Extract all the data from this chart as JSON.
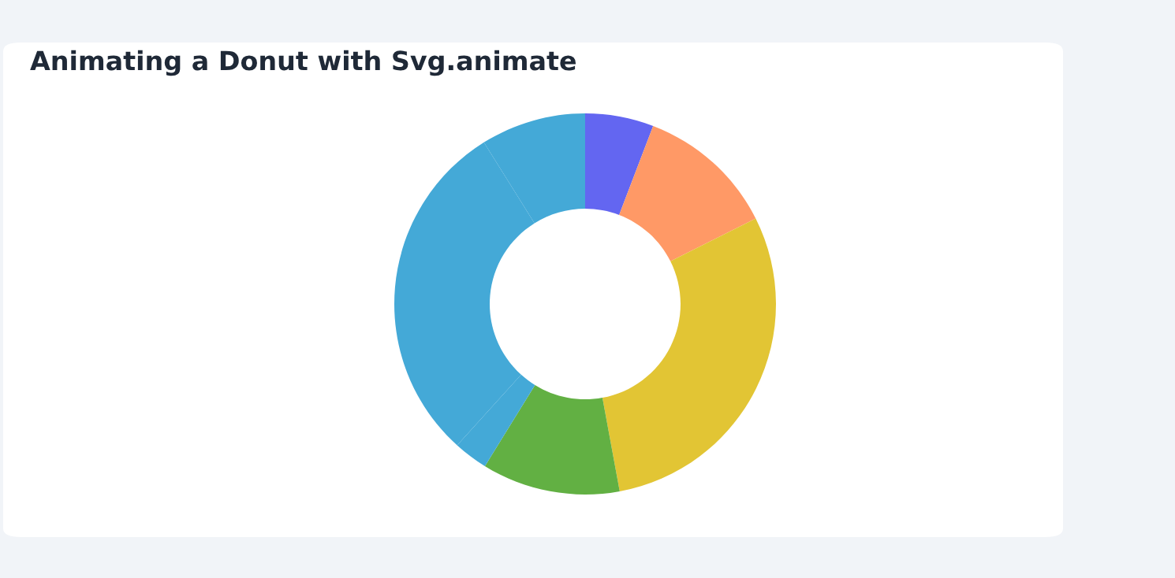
{
  "chart_data": {
    "type": "donut",
    "title": "Animating a Donut with Svg.animate",
    "categories": [
      null,
      null,
      null,
      null,
      null,
      null,
      null
    ],
    "values": [
      5.8,
      11.8,
      29.5,
      11.7,
      2.9,
      29.4,
      8.9
    ],
    "colors": [
      "#6366f1",
      "#ff9966",
      "#e2c534",
      "#62b043",
      "#44a9d7",
      "#44a9d7",
      "#44a9d7"
    ]
  }
}
